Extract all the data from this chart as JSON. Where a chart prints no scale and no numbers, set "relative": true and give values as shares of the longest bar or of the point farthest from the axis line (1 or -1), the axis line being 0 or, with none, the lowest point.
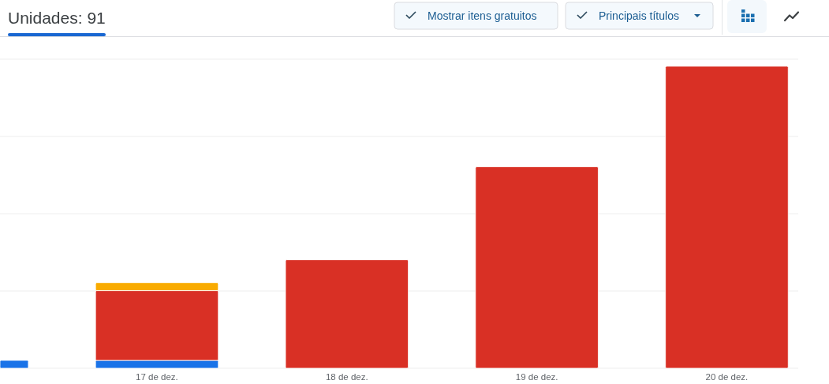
{
  "chart_data": {
    "type": "bar",
    "title": "Unidades: 91",
    "annotations": [
      "Mostrar itens gratuitos",
      "Principais títulos"
    ],
    "categories": [
      null,
      "17 de dez.",
      "18 de dez.",
      "19 de dez.",
      "20 de dez."
    ],
    "stacked": true,
    "relative": true,
    "grid": "y",
    "series": [
      {
        "color": "#1a73e8",
        "values": [
          0.026,
          0.026,
          null,
          null,
          null
        ]
      },
      {
        "color": "#d93025",
        "values": [
          null,
          0.231,
          0.359,
          0.667,
          1
        ]
      },
      {
        "color": "#f9ab00",
        "values": [
          null,
          0.026,
          null,
          null,
          null
        ]
      }
    ]
  }
}
